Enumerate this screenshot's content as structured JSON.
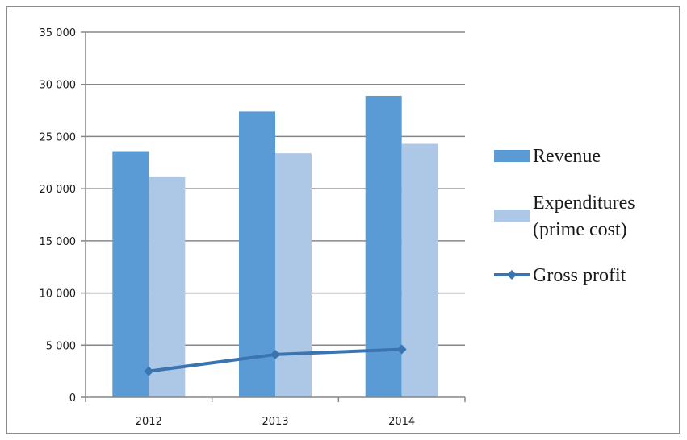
{
  "chart_data": {
    "type": "bar",
    "categories": [
      "2012",
      "2013",
      "2014"
    ],
    "series": [
      {
        "name": "Revenue",
        "kind": "bar",
        "color": "#5b9bd5",
        "values": [
          23600,
          27400,
          28900
        ]
      },
      {
        "name": "Expenditures (prime cost)",
        "kind": "bar",
        "color": "#adc7e6",
        "values": [
          21100,
          23400,
          24300
        ]
      },
      {
        "name": "Gross profit",
        "kind": "line",
        "color": "#3a75b0",
        "values": [
          2500,
          4100,
          4600
        ]
      }
    ],
    "y_ticks": [
      "0",
      "5 000",
      "10 000",
      "15 000",
      "20 000",
      "25 000",
      "30 000",
      "35 000"
    ],
    "ylim": [
      0,
      35000
    ],
    "grid": true,
    "legend_position": "right",
    "legend": [
      {
        "lines": [
          "Revenue"
        ],
        "marker": "box",
        "color": "#5b9bd5"
      },
      {
        "lines": [
          "Expenditures",
          "(prime cost)"
        ],
        "marker": "box",
        "color": "#adc7e6"
      },
      {
        "lines": [
          "Gross profit"
        ],
        "marker": "line-diamond",
        "color": "#3a75b0"
      }
    ]
  }
}
